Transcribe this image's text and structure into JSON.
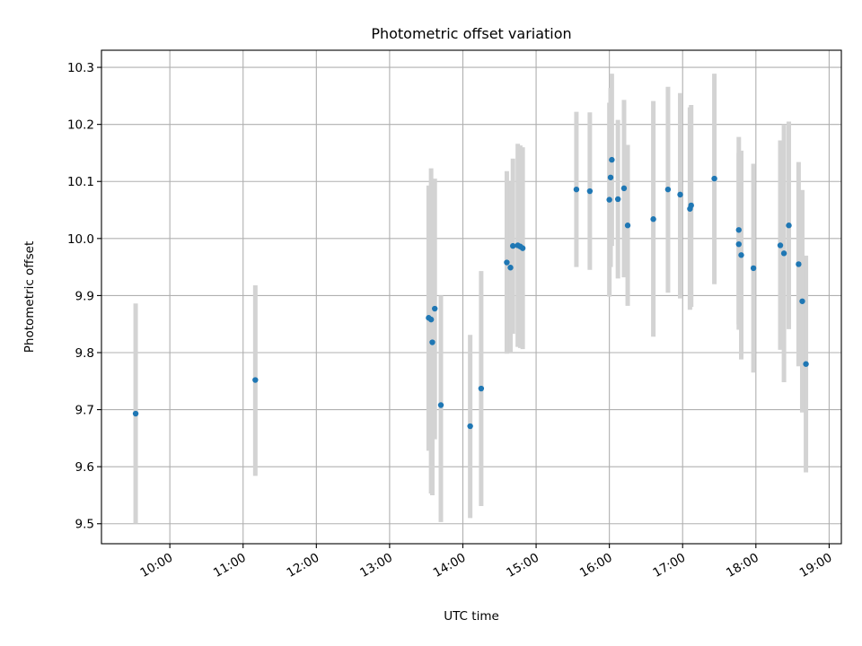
{
  "chart_data": {
    "type": "scatter",
    "title": "Photometric offset variation",
    "xlabel": "UTC time",
    "ylabel": "Photometric offset",
    "xlim": [
      "09:04",
      "19:10"
    ],
    "ylim": [
      9.465,
      10.33
    ],
    "grid": true,
    "x_ticks": [
      "10:00",
      "11:00",
      "12:00",
      "13:00",
      "14:00",
      "15:00",
      "16:00",
      "17:00",
      "18:00",
      "19:00"
    ],
    "y_ticks": [
      9.5,
      9.6,
      9.7,
      9.8,
      9.9,
      10.0,
      10.1,
      10.2,
      10.3
    ],
    "y_tick_labels": [
      "9.5",
      "9.6",
      "9.7",
      "9.8",
      "9.9",
      "10.0",
      "10.1",
      "10.2",
      "10.3"
    ],
    "marker_color": "#1f77b4",
    "errorbar_color": "#d3d3d3",
    "points": [
      {
        "x": "09:32",
        "y": 9.693,
        "ylow": 9.5,
        "yhigh": 9.886
      },
      {
        "x": "11:10",
        "y": 9.752,
        "ylow": 9.584,
        "yhigh": 9.918
      },
      {
        "x": "13:32",
        "y": 9.861,
        "ylow": 9.628,
        "yhigh": 10.093
      },
      {
        "x": "13:34",
        "y": 9.858,
        "ylow": 9.553,
        "yhigh": 10.123
      },
      {
        "x": "13:35",
        "y": 9.818,
        "ylow": 9.55,
        "yhigh": 10.0
      },
      {
        "x": "13:37",
        "y": 9.877,
        "ylow": 9.648,
        "yhigh": 10.105
      },
      {
        "x": "13:42",
        "y": 9.708,
        "ylow": 9.503,
        "yhigh": 9.9
      },
      {
        "x": "14:06",
        "y": 9.671,
        "ylow": 9.51,
        "yhigh": 9.831
      },
      {
        "x": "14:15",
        "y": 9.737,
        "ylow": 9.531,
        "yhigh": 9.943
      },
      {
        "x": "14:36",
        "y": 9.958,
        "ylow": 9.798,
        "yhigh": 10.118
      },
      {
        "x": "14:39",
        "y": 9.949,
        "ylow": 9.8,
        "yhigh": 10.1
      },
      {
        "x": "14:41",
        "y": 9.987,
        "ylow": 9.833,
        "yhigh": 10.14
      },
      {
        "x": "14:45",
        "y": 9.988,
        "ylow": 9.81,
        "yhigh": 10.166
      },
      {
        "x": "14:47",
        "y": 9.986,
        "ylow": 9.808,
        "yhigh": 10.163
      },
      {
        "x": "14:49",
        "y": 9.983,
        "ylow": 9.806,
        "yhigh": 10.16
      },
      {
        "x": "15:33",
        "y": 10.086,
        "ylow": 9.95,
        "yhigh": 10.222
      },
      {
        "x": "15:44",
        "y": 10.083,
        "ylow": 9.945,
        "yhigh": 10.221
      },
      {
        "x": "16:00",
        "y": 10.068,
        "ylow": 9.898,
        "yhigh": 10.238
      },
      {
        "x": "16:01",
        "y": 10.107,
        "ylow": 9.95,
        "yhigh": 10.264
      },
      {
        "x": "16:02",
        "y": 10.138,
        "ylow": 9.987,
        "yhigh": 10.289
      },
      {
        "x": "16:07",
        "y": 10.069,
        "ylow": 9.93,
        "yhigh": 10.208
      },
      {
        "x": "16:12",
        "y": 10.088,
        "ylow": 9.932,
        "yhigh": 10.243
      },
      {
        "x": "16:15",
        "y": 10.023,
        "ylow": 9.882,
        "yhigh": 10.164
      },
      {
        "x": "16:36",
        "y": 10.034,
        "ylow": 9.828,
        "yhigh": 10.241
      },
      {
        "x": "16:48",
        "y": 10.086,
        "ylow": 9.905,
        "yhigh": 10.266
      },
      {
        "x": "16:58",
        "y": 10.077,
        "ylow": 9.895,
        "yhigh": 10.255
      },
      {
        "x": "17:06",
        "y": 10.052,
        "ylow": 9.875,
        "yhigh": 10.23
      },
      {
        "x": "17:07",
        "y": 10.058,
        "ylow": 9.88,
        "yhigh": 10.234
      },
      {
        "x": "17:26",
        "y": 10.105,
        "ylow": 9.92,
        "yhigh": 10.289
      },
      {
        "x": "17:46",
        "y": 10.015,
        "ylow": 9.84,
        "yhigh": 10.178
      },
      {
        "x": "17:46",
        "y": 9.99,
        "ylow": 9.85,
        "yhigh": 10.15
      },
      {
        "x": "17:48",
        "y": 9.971,
        "ylow": 9.788,
        "yhigh": 10.154
      },
      {
        "x": "17:58",
        "y": 9.948,
        "ylow": 9.765,
        "yhigh": 10.131
      },
      {
        "x": "18:20",
        "y": 9.988,
        "ylow": 9.805,
        "yhigh": 10.172
      },
      {
        "x": "18:23",
        "y": 9.974,
        "ylow": 9.748,
        "yhigh": 10.2
      },
      {
        "x": "18:27",
        "y": 10.023,
        "ylow": 9.841,
        "yhigh": 10.205
      },
      {
        "x": "18:35",
        "y": 9.955,
        "ylow": 9.776,
        "yhigh": 10.134
      },
      {
        "x": "18:38",
        "y": 9.89,
        "ylow": 9.695,
        "yhigh": 10.085
      },
      {
        "x": "18:41",
        "y": 9.78,
        "ylow": 9.59,
        "yhigh": 9.97
      }
    ]
  }
}
